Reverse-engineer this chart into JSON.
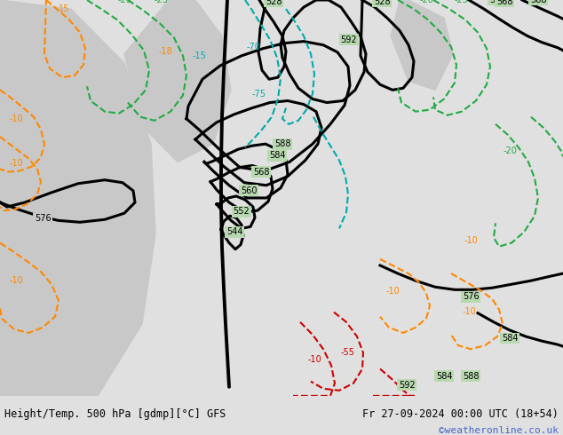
{
  "title_left": "Height/Temp. 500 hPa [gdmp][°C] GFS",
  "title_right": "Fr 27-09-2024 00:00 UTC (18+54)",
  "watermark": "©weatheronline.co.uk",
  "fig_width": 6.34,
  "fig_height": 4.9,
  "dpi": 100,
  "watermark_color": "#4466cc",
  "cyan": "#00aaaa",
  "orange": "#ff8800",
  "green": "#22aa44",
  "red": "#cc0000",
  "black": "#000000",
  "land_color": "#b8d8b0",
  "sea_color": "#c8c8c8",
  "bar_color": "#e0e0e0"
}
